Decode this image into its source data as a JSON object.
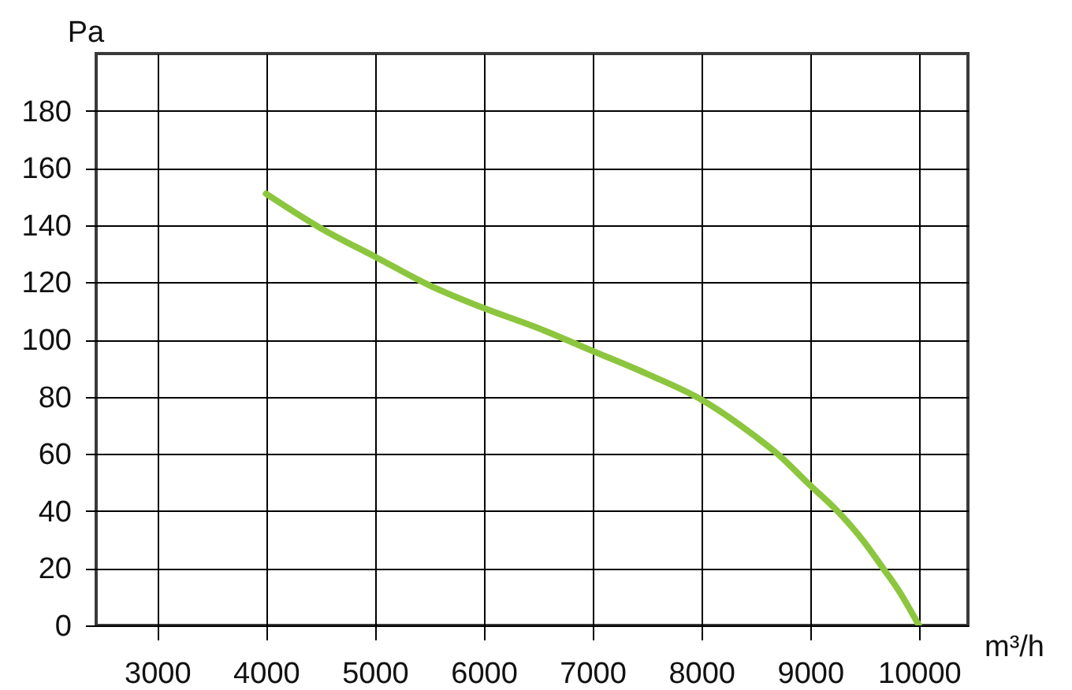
{
  "chart_data": {
    "type": "line",
    "xlabel": "m³/h",
    "ylabel": "Pa",
    "x": [
      4000,
      4500,
      5000,
      5500,
      6000,
      6500,
      7000,
      7500,
      8000,
      8500,
      8700,
      9000,
      9250,
      9500,
      9670,
      9800,
      10000
    ],
    "series": [
      {
        "color": "#8cc63e",
        "values": [
          151,
          139,
          129,
          119,
          111,
          104,
          96,
          88,
          79,
          66,
          60,
          49,
          40,
          29,
          20,
          13,
          0
        ]
      }
    ],
    "xlim": [
      2440,
      10450
    ],
    "ylim": [
      0,
      200
    ],
    "xticks": [
      3000,
      4000,
      5000,
      6000,
      7000,
      8000,
      9000,
      10000
    ],
    "yticks": [
      0,
      20,
      40,
      60,
      80,
      100,
      120,
      140,
      160,
      180
    ],
    "grid": true,
    "marker": "none",
    "line_style": "solid"
  }
}
